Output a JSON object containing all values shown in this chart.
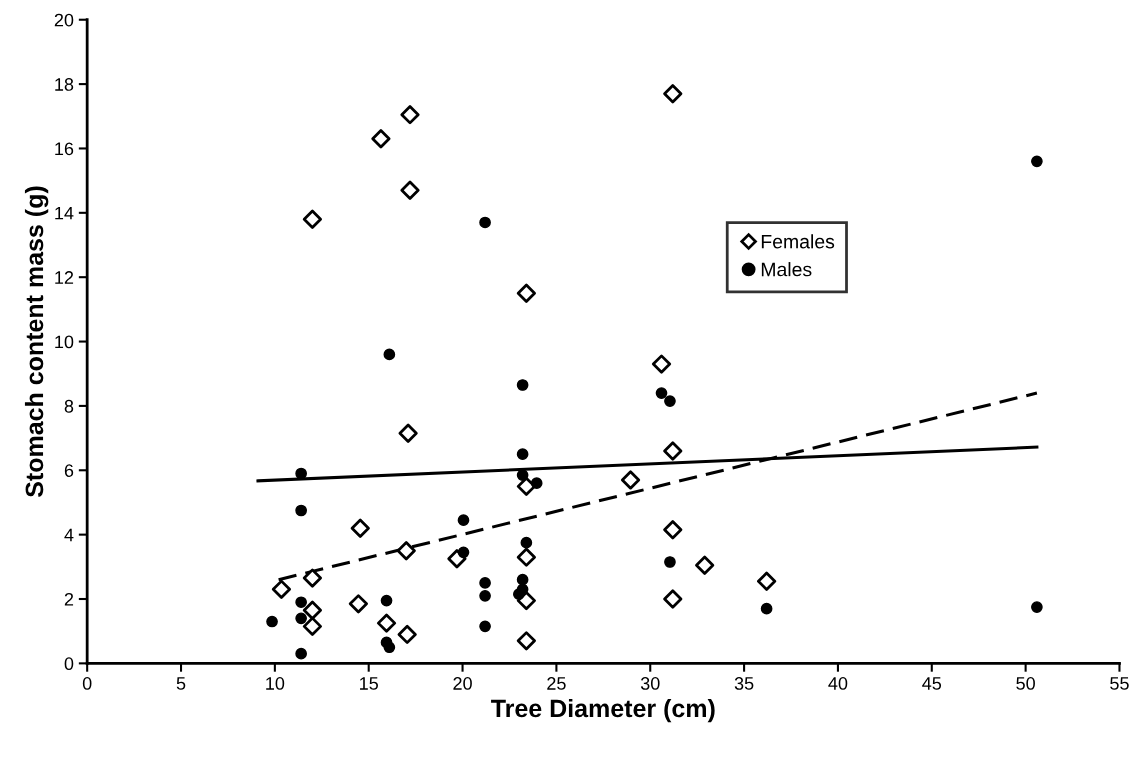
{
  "chart_data": {
    "type": "scatter",
    "xlabel": "Tree Diameter (cm)",
    "ylabel": "Stomach content mass (g)",
    "xlim": [
      0,
      55
    ],
    "xticks": [
      0,
      5,
      10,
      15,
      20,
      25,
      30,
      35,
      40,
      45,
      50,
      55
    ],
    "ylim": [
      0,
      20
    ],
    "yticks": [
      0,
      2,
      4,
      6,
      8,
      10,
      12,
      14,
      16,
      18,
      20
    ],
    "grid": false,
    "legend": "top right",
    "series": [
      {
        "name": "Females",
        "marker": "diamond",
        "color": "#000000",
        "x": [
          17.2,
          15.65,
          17.2,
          12.0,
          23.4,
          31.2,
          30.6,
          17.1,
          31.2,
          23.4,
          28.95,
          14.55,
          17.0,
          19.7,
          23.4,
          31.2,
          10.35,
          12.0,
          32.9,
          36.2,
          23.4,
          14.45,
          31.2,
          12.0,
          12.0,
          15.95,
          17.05,
          23.4
        ],
        "values": [
          17.05,
          16.3,
          14.7,
          13.8,
          11.5,
          17.7,
          9.3,
          7.15,
          6.6,
          5.5,
          5.7,
          4.2,
          3.5,
          3.25,
          3.3,
          4.15,
          2.3,
          2.65,
          3.05,
          2.55,
          1.95,
          1.85,
          2.0,
          1.65,
          1.15,
          1.25,
          0.9,
          0.7
        ]
      },
      {
        "name": "Males",
        "marker": "circle",
        "color": "#000000",
        "x": [
          50.6,
          21.2,
          16.1,
          23.2,
          30.6,
          31.05,
          23.2,
          11.4,
          23.2,
          23.95,
          11.4,
          20.05,
          20.05,
          23.4,
          31.05,
          21.2,
          21.2,
          23.2,
          23.2,
          23.0,
          11.4,
          15.95,
          9.85,
          11.4,
          15.95,
          16.1,
          11.4,
          21.2,
          36.2,
          50.6
        ],
        "values": [
          15.6,
          13.7,
          9.6,
          8.65,
          8.4,
          8.15,
          6.5,
          5.9,
          5.85,
          5.6,
          4.75,
          4.45,
          3.45,
          3.75,
          3.15,
          2.5,
          2.1,
          2.6,
          2.3,
          2.15,
          1.9,
          1.95,
          1.3,
          1.4,
          0.65,
          0.5,
          0.3,
          1.15,
          1.7,
          1.75
        ]
      },
      {
        "type": "line",
        "line_style": "solid",
        "color": "#000000",
        "x": [
          9.1,
          50.6
        ],
        "values": [
          5.67,
          6.72
        ]
      },
      {
        "type": "line",
        "line_style": "dashed",
        "color": "#000000",
        "x": [
          10.2,
          50.6
        ],
        "values": [
          2.6,
          8.4
        ]
      }
    ]
  }
}
